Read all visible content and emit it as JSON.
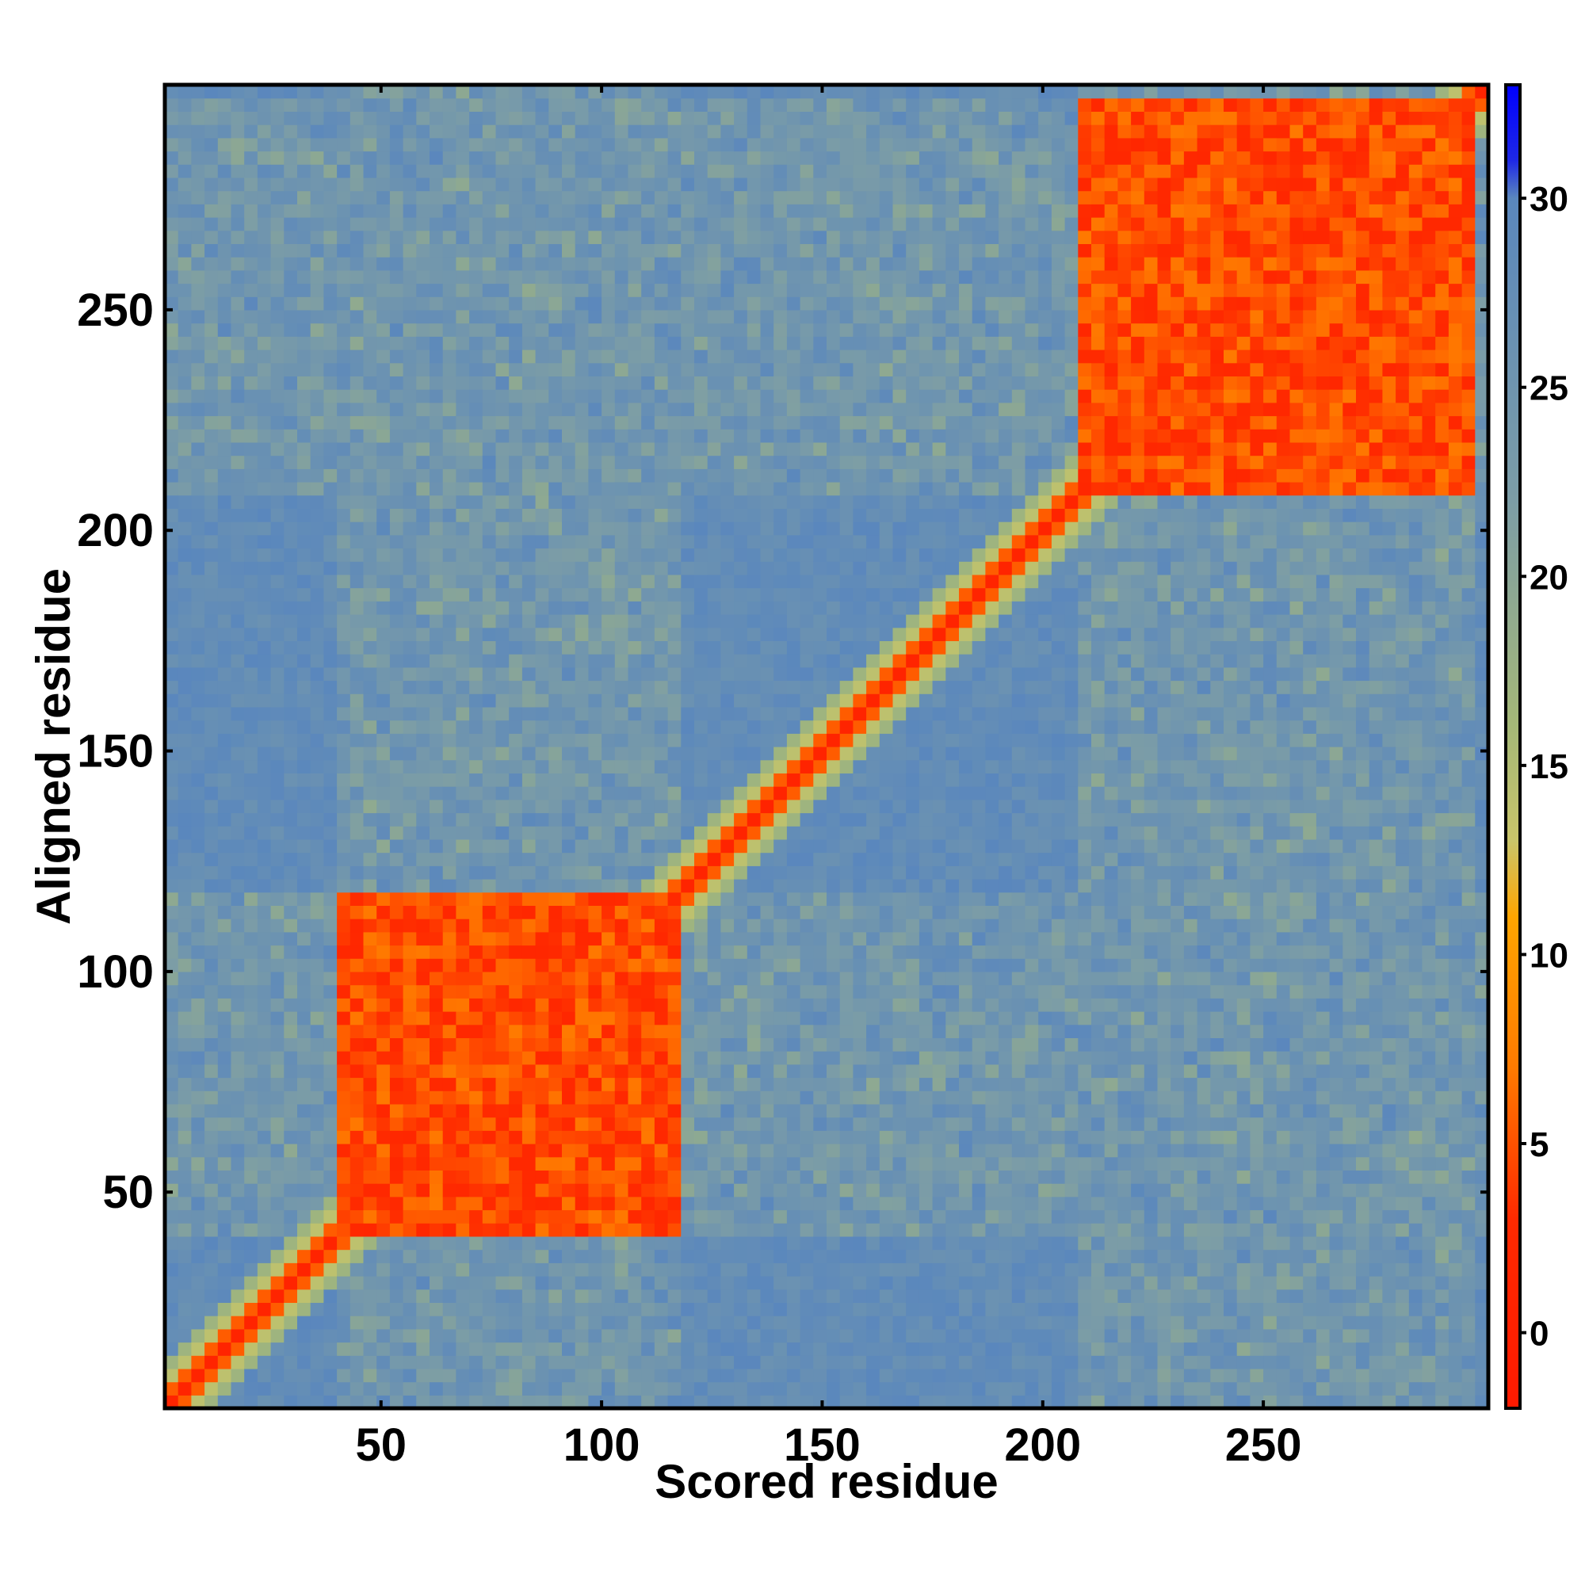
{
  "chart_data": {
    "type": "heatmap",
    "title": "",
    "xlabel": "Scored residue",
    "ylabel": "Aligned residue",
    "xlim": [
      1,
      301
    ],
    "ylim": [
      1,
      301
    ],
    "x_ticks": [
      50,
      100,
      150,
      200,
      250
    ],
    "y_ticks": [
      50,
      100,
      150,
      200,
      250
    ],
    "colorbar": {
      "range": [
        -2,
        33
      ],
      "ticks": [
        0,
        5,
        10,
        15,
        20,
        25,
        30
      ],
      "stops": [
        {
          "value": -2,
          "color": "#ff1a00"
        },
        {
          "value": 3,
          "color": "#ff2a00"
        },
        {
          "value": 7,
          "color": "#ff7a00"
        },
        {
          "value": 11,
          "color": "#ffa500"
        },
        {
          "value": 13,
          "color": "#c9c56a"
        },
        {
          "value": 16,
          "color": "#a5b877"
        },
        {
          "value": 22,
          "color": "#7c9da6"
        },
        {
          "value": 30,
          "color": "#5a87bd"
        },
        {
          "value": 31,
          "color": "#1e28e6"
        },
        {
          "value": 33,
          "color": "#0000ff"
        }
      ]
    },
    "domains": [
      {
        "name": "",
        "range": [
          39,
          116
        ]
      },
      {
        "name": "",
        "range": [
          206,
          297
        ]
      }
    ],
    "grid": false,
    "legend": "colorbar-right"
  }
}
